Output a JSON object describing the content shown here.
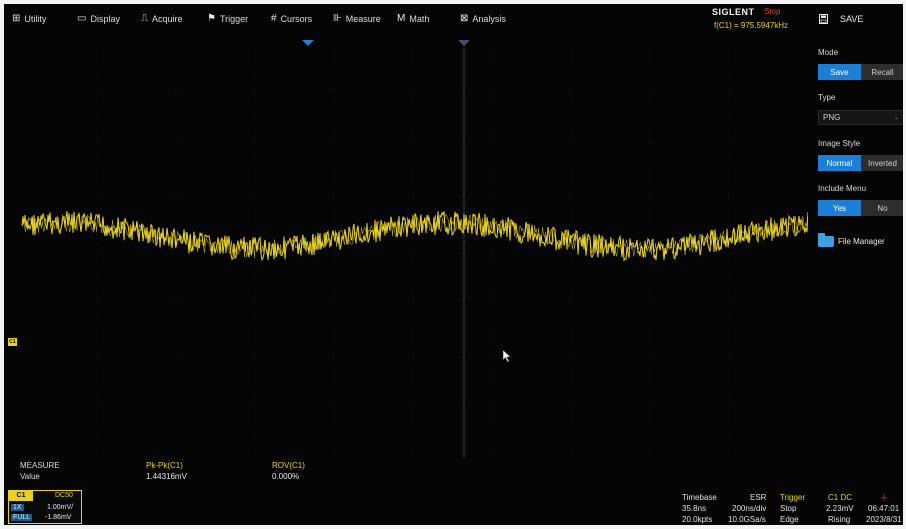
{
  "menu": [
    {
      "icon": "utility-icon",
      "glyph": "⊞",
      "label": "Utility"
    },
    {
      "icon": "display-icon",
      "glyph": "▭",
      "label": "Display"
    },
    {
      "icon": "acquire-icon",
      "glyph": "⎍",
      "label": "Acquire"
    },
    {
      "icon": "trigger-icon",
      "glyph": "⚑",
      "label": "Trigger"
    },
    {
      "icon": "cursors-icon",
      "glyph": "#",
      "label": "Cursors"
    },
    {
      "icon": "measure-icon",
      "glyph": "⊪",
      "label": "Measure"
    },
    {
      "icon": "math-icon",
      "glyph": "M",
      "label": "Math"
    },
    {
      "icon": "analysis-icon",
      "glyph": "⊠",
      "label": "Analysis"
    }
  ],
  "status": {
    "brand": "SIGLENT",
    "run_state": "Stop",
    "frequency": "f(C1) = 975.5947kHz",
    "colors": {
      "trace": "#e8d21b",
      "accent": "#1c7fd4",
      "stop": "#e03a2c"
    }
  },
  "save_panel": {
    "title": "SAVE",
    "icon": "save-icon",
    "mode_label": "Mode",
    "mode_options": [
      "Save",
      "Recall"
    ],
    "mode_selected": "Save",
    "type_label": "Type",
    "type_value": "PNG",
    "image_style_label": "Image Style",
    "image_style_options": [
      "Normal",
      "Inverted"
    ],
    "image_style_selected": "Normal",
    "include_menu_label": "Include Menu",
    "include_menu_options": [
      "Yes",
      "No"
    ],
    "include_menu_selected": "Yes",
    "file_manager": "File Manager"
  },
  "channel_marker": "C1",
  "measure": {
    "title": "MEASURE",
    "row_label": "Value",
    "items": [
      {
        "name": "Pk-Pk(C1)",
        "value": "1.44316mV"
      },
      {
        "name": "ROV(C1)",
        "value": "0.000%"
      }
    ]
  },
  "channel_box": {
    "name": "C1",
    "coupling": "DC50",
    "probe": "1X",
    "scale": "1.00mV/",
    "bandwidth": "FULL",
    "offset": "-1.86mV"
  },
  "timebase": {
    "title": "Timebase",
    "mode": "ESR",
    "delay": "35.8ns",
    "scale": "200ns/div",
    "points": "20.0kpts",
    "sample_rate": "10.0GSa/s"
  },
  "trigger": {
    "title": "Trigger",
    "state": "Stop",
    "type": "Edge",
    "source": "C1 DC",
    "level": "2.23mV",
    "slope": "Rising"
  },
  "clock": {
    "time": "06:47:01",
    "date": "2023/8/31"
  }
}
